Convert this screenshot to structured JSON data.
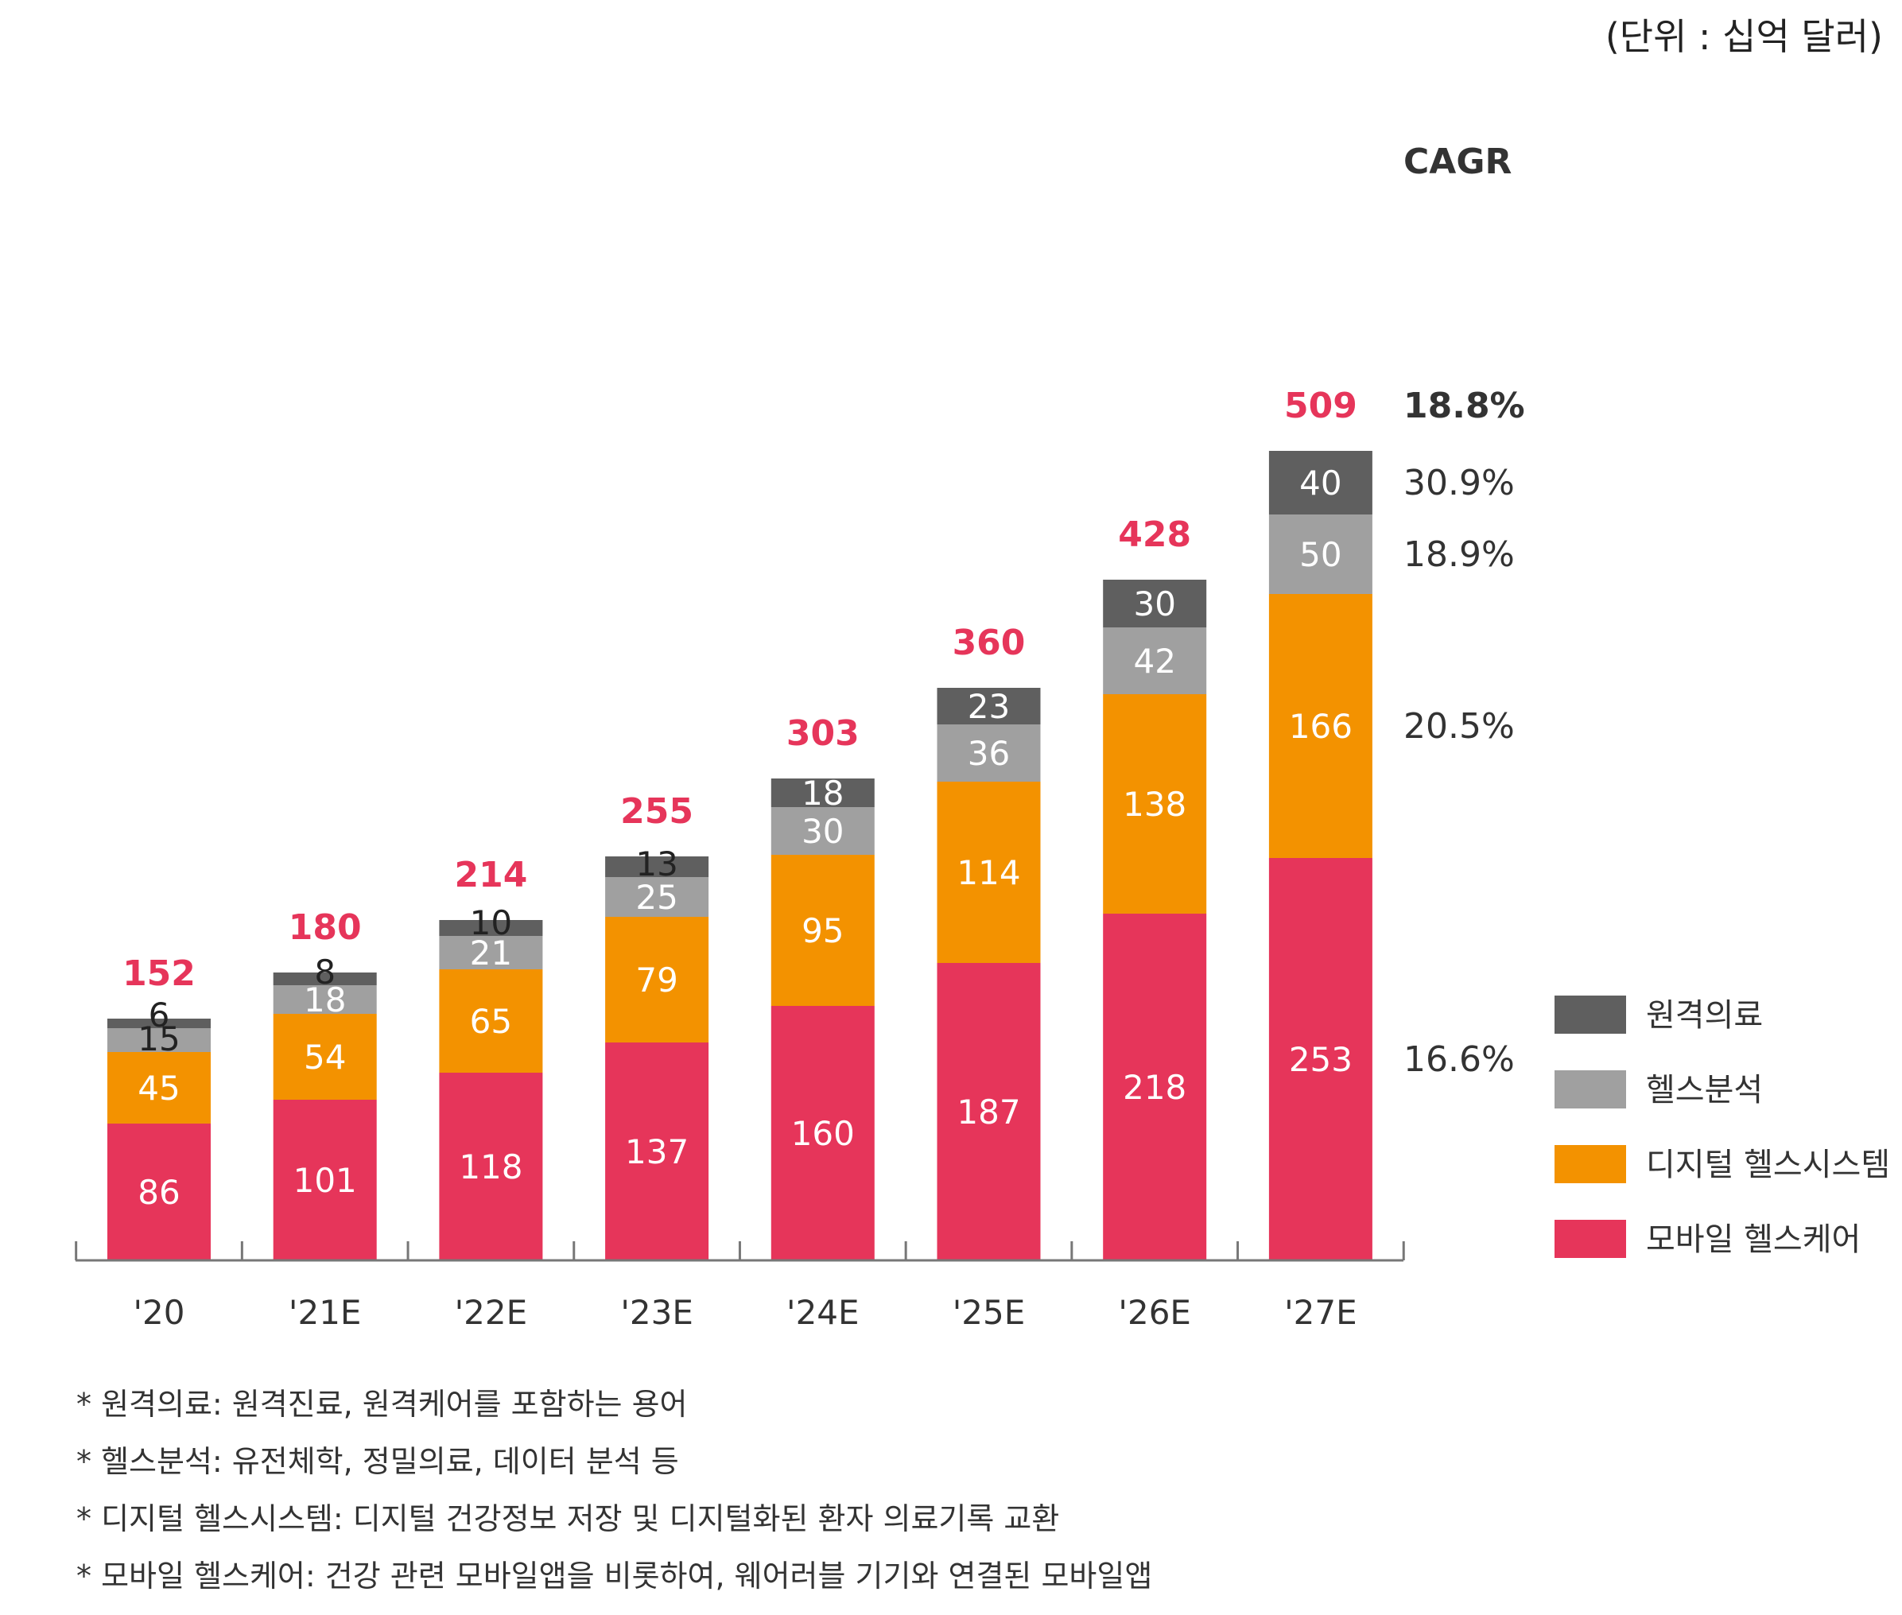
{
  "unit_note": "(단위 : 십억 달러)",
  "cagr": {
    "title": "CAGR",
    "total": "18.8%",
    "by_series": [
      "16.6%",
      "20.5%",
      "18.9%",
      "30.9%"
    ]
  },
  "footnotes": [
    "* 원격의료: 원격진료, 원격케어를 포함하는 용어",
    "* 헬스분석: 유전체학, 정밀의료, 데이터 분석 등",
    "* 디지털 헬스시스템: 디지털 건강정보 저장 및 디지털화된 환자 의료기록 교환",
    "* 모바일 헬스케어: 건강 관련 모바일앱을 비롯하여, 웨어러블 기기와 연결된 모바일앱"
  ],
  "chart_data": {
    "type": "bar",
    "stacked": true,
    "categories": [
      "'20",
      "'21E",
      "'22E",
      "'23E",
      "'24E",
      "'25E",
      "'26E",
      "'27E"
    ],
    "totals": [
      152,
      180,
      214,
      255,
      303,
      360,
      428,
      509
    ],
    "series": [
      {
        "name": "모바일 헬스케어",
        "color": "#e6355a",
        "values": [
          86,
          101,
          118,
          137,
          160,
          187,
          218,
          253
        ]
      },
      {
        "name": "디지털 헬스시스템",
        "color": "#f39200",
        "values": [
          45,
          54,
          65,
          79,
          95,
          114,
          138,
          166
        ]
      },
      {
        "name": "헬스분석",
        "color": "#a0a0a0",
        "values": [
          15,
          18,
          21,
          25,
          30,
          36,
          42,
          50
        ]
      },
      {
        "name": "원격의료",
        "color": "#5f5f5f",
        "values": [
          6,
          8,
          10,
          13,
          18,
          23,
          30,
          40
        ]
      }
    ],
    "legend_order": [
      "원격의료",
      "헬스분석",
      "디지털 헬스시스템",
      "모바일 헬스케어"
    ],
    "legend_position": "right",
    "grid": false
  }
}
